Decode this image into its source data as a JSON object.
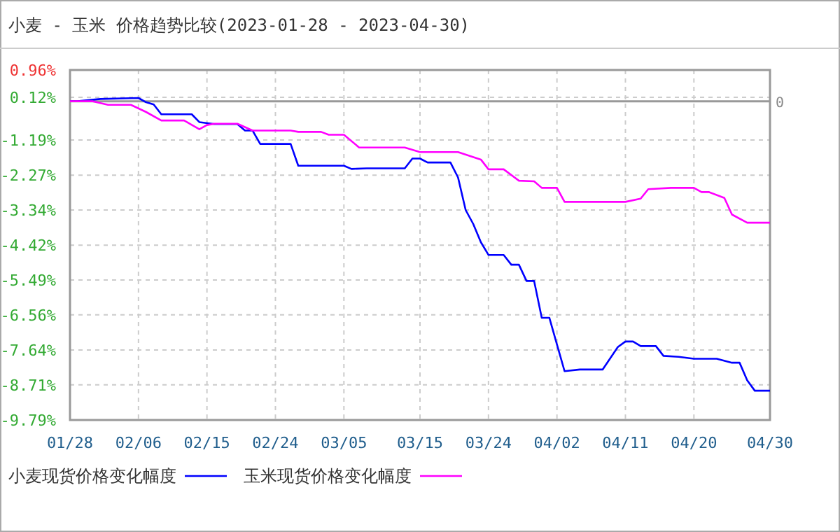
{
  "chart_data": {
    "type": "line",
    "title": "小麦 - 玉米 价格趋势比较(2023-01-28 - 2023-04-30)",
    "xlim": [
      "2023-01-28",
      "2023-04-30"
    ],
    "xticks": [
      {
        "value": "2023-01-28",
        "label": "01/28"
      },
      {
        "value": "2023-02-06",
        "label": "02/06"
      },
      {
        "value": "2023-02-15",
        "label": "02/15"
      },
      {
        "value": "2023-02-24",
        "label": "02/24"
      },
      {
        "value": "2023-03-05",
        "label": "03/05"
      },
      {
        "value": "2023-03-15",
        "label": "03/15"
      },
      {
        "value": "2023-03-24",
        "label": "03/24"
      },
      {
        "value": "2023-04-02",
        "label": "04/02"
      },
      {
        "value": "2023-04-11",
        "label": "04/11"
      },
      {
        "value": "2023-04-20",
        "label": "04/20"
      },
      {
        "value": "2023-04-30",
        "label": "04/30"
      }
    ],
    "ylim": [
      -9.79,
      0.96
    ],
    "yticks": [
      {
        "value": 0.96,
        "label": "0.96%"
      },
      {
        "value": 0.12,
        "label": "0.12%"
      },
      {
        "value": -1.19,
        "label": "-1.19%"
      },
      {
        "value": -2.27,
        "label": "-2.27%"
      },
      {
        "value": -3.34,
        "label": "-3.34%"
      },
      {
        "value": -4.42,
        "label": "-4.42%"
      },
      {
        "value": -5.49,
        "label": "-5.49%"
      },
      {
        "value": -6.56,
        "label": "-6.56%"
      },
      {
        "value": -7.64,
        "label": "-7.64%"
      },
      {
        "value": -8.71,
        "label": "-8.71%"
      },
      {
        "value": -9.79,
        "label": "-9.79%"
      }
    ],
    "grid": true,
    "legend": "bottom",
    "marker": "none",
    "line_style": "solid",
    "ref_lines": [
      {
        "axis": "y",
        "value": 0,
        "label": "0",
        "color": "#999999",
        "line_style": "solid"
      }
    ],
    "series": [
      {
        "name": "小麦现货价格变化幅度",
        "color": "#0000ff",
        "x": [
          "2023-01-28",
          "2023-01-29",
          "2023-02-01",
          "2023-02-06",
          "2023-02-07",
          "2023-02-08",
          "2023-02-09",
          "2023-02-13",
          "2023-02-14",
          "2023-02-16",
          "2023-02-19",
          "2023-02-20",
          "2023-02-21",
          "2023-02-22",
          "2023-02-26",
          "2023-02-27",
          "2023-03-05",
          "2023-03-06",
          "2023-03-08",
          "2023-03-13",
          "2023-03-14",
          "2023-03-15",
          "2023-03-16",
          "2023-03-19",
          "2023-03-20",
          "2023-03-21",
          "2023-03-22",
          "2023-03-23",
          "2023-03-24",
          "2023-03-26",
          "2023-03-27",
          "2023-03-28",
          "2023-03-29",
          "2023-03-30",
          "2023-03-31",
          "2023-04-01",
          "2023-04-03",
          "2023-04-05",
          "2023-04-08",
          "2023-04-10",
          "2023-04-11",
          "2023-04-12",
          "2023-04-13",
          "2023-04-15",
          "2023-04-16",
          "2023-04-18",
          "2023-04-20",
          "2023-04-23",
          "2023-04-25",
          "2023-04-26",
          "2023-04-27",
          "2023-04-28",
          "2023-04-30"
        ],
        "values": [
          0,
          0,
          0.07,
          0.1,
          -0.03,
          -0.1,
          -0.4,
          -0.4,
          -0.64,
          -0.7,
          -0.7,
          -0.9,
          -0.9,
          -1.31,
          -1.31,
          -1.98,
          -1.98,
          -2.08,
          -2.06,
          -2.06,
          -1.76,
          -1.76,
          -1.88,
          -1.88,
          -2.34,
          -3.34,
          -3.77,
          -4.33,
          -4.72,
          -4.72,
          -5.02,
          -5.02,
          -5.52,
          -5.52,
          -6.65,
          -6.65,
          -8.29,
          -8.24,
          -8.24,
          -7.55,
          -7.38,
          -7.38,
          -7.52,
          -7.52,
          -7.82,
          -7.85,
          -7.91,
          -7.91,
          -8.03,
          -8.03,
          -8.57,
          -8.89,
          -8.89
        ]
      },
      {
        "name": "玉米现货价格变化幅度",
        "color": "#ff00ff",
        "x": [
          "2023-01-28",
          "2023-01-31",
          "2023-02-02",
          "2023-02-05",
          "2023-02-07",
          "2023-02-09",
          "2023-02-12",
          "2023-02-14",
          "2023-02-15",
          "2023-02-16",
          "2023-02-19",
          "2023-02-21",
          "2023-02-26",
          "2023-02-27",
          "2023-03-02",
          "2023-03-03",
          "2023-03-05",
          "2023-03-07",
          "2023-03-13",
          "2023-03-15",
          "2023-03-20",
          "2023-03-23",
          "2023-03-24",
          "2023-03-26",
          "2023-03-28",
          "2023-03-30",
          "2023-03-31",
          "2023-04-02",
          "2023-04-03",
          "2023-04-11",
          "2023-04-13",
          "2023-04-14",
          "2023-04-17",
          "2023-04-20",
          "2023-04-21",
          "2023-04-22",
          "2023-04-24",
          "2023-04-25",
          "2023-04-27",
          "2023-04-30"
        ],
        "values": [
          0,
          0,
          -0.11,
          -0.11,
          -0.33,
          -0.59,
          -0.59,
          -0.86,
          -0.73,
          -0.69,
          -0.69,
          -0.9,
          -0.9,
          -0.94,
          -0.94,
          -1.03,
          -1.03,
          -1.42,
          -1.42,
          -1.56,
          -1.56,
          -1.79,
          -2.09,
          -2.09,
          -2.44,
          -2.46,
          -2.66,
          -2.66,
          -3.09,
          -3.09,
          -2.99,
          -2.7,
          -2.66,
          -2.66,
          -2.79,
          -2.79,
          -2.97,
          -3.48,
          -3.73,
          -3.73
        ]
      }
    ]
  }
}
